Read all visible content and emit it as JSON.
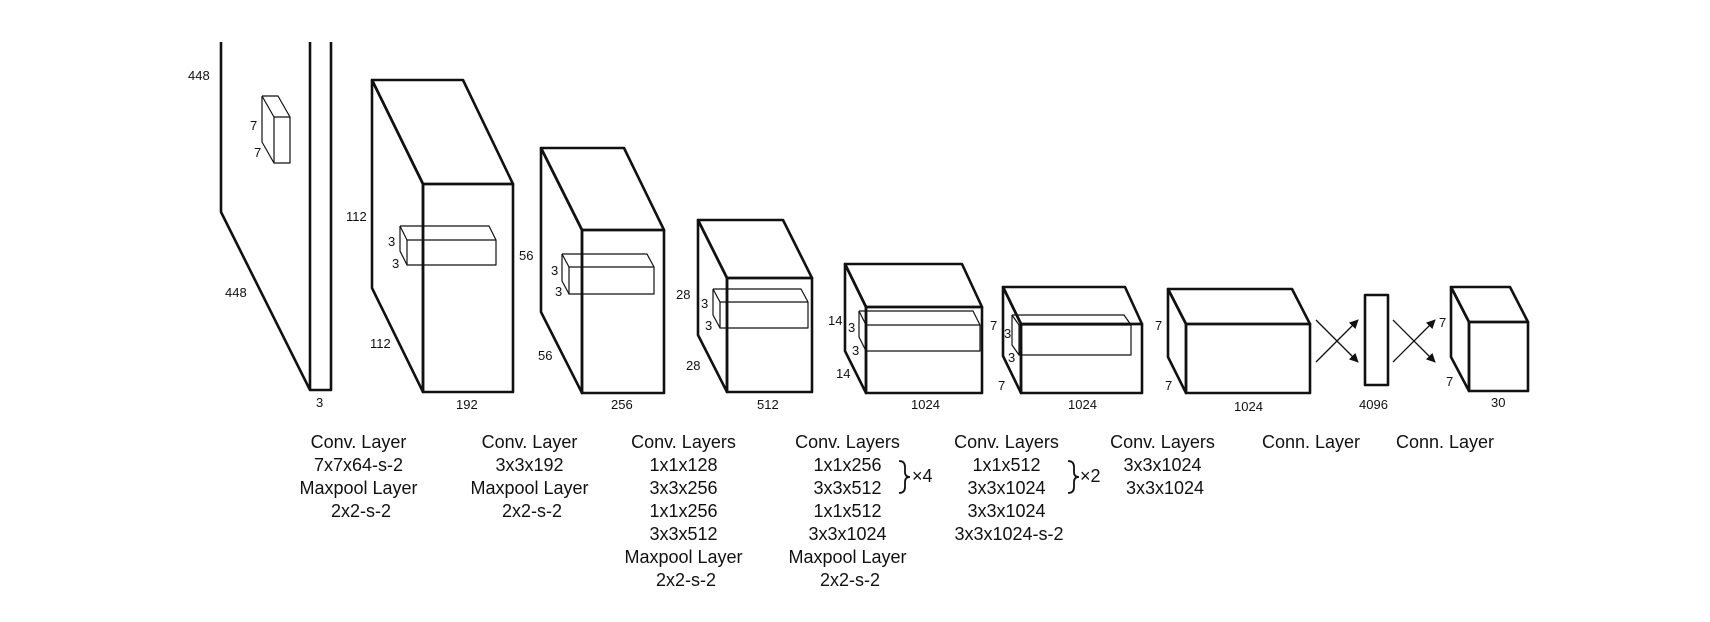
{
  "dims": {
    "input_h": "448",
    "input_w": "448",
    "input_c": "3",
    "input_k1": "7",
    "input_k2": "7",
    "l1_h": "112",
    "l1_w": "112",
    "l1_c": "192",
    "l1_k1": "3",
    "l1_k2": "3",
    "l2_h": "56",
    "l2_w": "56",
    "l2_c": "256",
    "l2_k1": "3",
    "l2_k2": "3",
    "l3_h": "28",
    "l3_w": "28",
    "l3_c": "512",
    "l3_k1": "3",
    "l3_k2": "3",
    "l4_h": "14",
    "l4_w": "14",
    "l4_c": "1024",
    "l4_k1": "3",
    "l4_k2": "3",
    "l5_h": "7",
    "l5_w": "7",
    "l5_c": "1024",
    "l5_k1": "3",
    "l5_k2": "3",
    "l6_h": "7",
    "l6_w": "7",
    "l6_c": "1024",
    "fc1": "4096",
    "out_h": "7",
    "out_w": "7",
    "out_c": "30"
  },
  "captions": {
    "b1": [
      "Conv. Layer",
      "7x7x64-s-2",
      "Maxpool Layer",
      "2x2-s-2"
    ],
    "b2": [
      "Conv. Layer",
      "3x3x192",
      "Maxpool Layer",
      "2x2-s-2"
    ],
    "b3": [
      "Conv. Layers",
      "1x1x128",
      "3x3x256",
      "1x1x256",
      "3x3x512",
      "Maxpool Layer",
      "2x2-s-2"
    ],
    "b4": [
      "Conv. Layers",
      "1x1x256",
      "3x3x512",
      "1x1x512",
      "3x3x1024",
      "Maxpool Layer",
      "2x2-s-2"
    ],
    "b4_repeat": "×4",
    "b5": [
      "Conv. Layers",
      "1x1x512",
      "3x3x1024",
      "3x3x1024",
      "3x3x1024-s-2"
    ],
    "b5_repeat": "×2",
    "b6": [
      "Conv. Layers",
      "3x3x1024",
      "3x3x1024"
    ],
    "b7": [
      "Conn. Layer"
    ],
    "b8": [
      "Conn. Layer"
    ]
  }
}
